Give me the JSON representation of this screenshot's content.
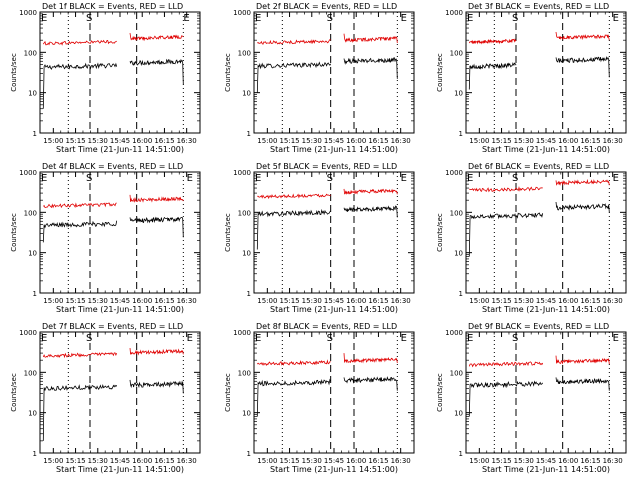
{
  "figure": {
    "x_tick_labels": [
      "15:00",
      "15:15",
      "15:30",
      "15:45",
      "16:00",
      "16:15",
      "16:30"
    ],
    "y_tick_labels": [
      "1",
      "10",
      "100",
      "1000"
    ],
    "ylabel": "Counts/sec",
    "xlabel": "Start Time (21-Jun-11 14:51:00)",
    "marker_s": "S",
    "marker_e": "E",
    "color_events": "#000000",
    "color_lld": "#e00000"
  },
  "chart_data": [
    {
      "type": "line",
      "title": "Det 1f BLACK = Events, RED = LLD",
      "xlim_min": [
        51,
        99
      ],
      "ylim": [
        1,
        1000
      ],
      "yscale": "log",
      "series": [
        {
          "name": "Events",
          "segments": [
            {
              "t": [
                52,
                74
              ],
              "start": 4,
              "level": 45,
              "end": 44
            },
            {
              "t": [
                78,
                94
              ],
              "start": 60,
              "level": 57,
              "end": 16
            }
          ]
        },
        {
          "name": "LLD",
          "segments": [
            {
              "t": [
                52,
                74
              ],
              "start": 160,
              "level": 175,
              "end": 190
            },
            {
              "t": [
                78,
                94
              ],
              "start": 300,
              "level": 230,
              "end": 240
            }
          ]
        }
      ],
      "dashed_x_min": [
        66,
        80
      ],
      "dotted_x_min": [
        59.5,
        94
      ],
      "marker_s_x_min": 66,
      "marker_e_x_min": 94
    },
    {
      "type": "line",
      "title": "Det 2f BLACK = Events, RED = LLD",
      "xlim_min": [
        51,
        99
      ],
      "ylim": [
        1,
        1000
      ],
      "yscale": "log",
      "series": [
        {
          "name": "Events",
          "segments": [
            {
              "t": [
                52,
                74
              ],
              "start": 10,
              "level": 48,
              "end": 52
            },
            {
              "t": [
                78,
                94
              ],
              "start": 70,
              "level": 62,
              "end": 22
            }
          ]
        },
        {
          "name": "LLD",
          "segments": [
            {
              "t": [
                52,
                74
              ],
              "start": 170,
              "level": 180,
              "end": 200
            },
            {
              "t": [
                78,
                94
              ],
              "start": 290,
              "level": 210,
              "end": 170
            }
          ]
        }
      ],
      "dashed_x_min": [
        74,
        81
      ],
      "dotted_x_min": [
        59.5,
        94
      ],
      "marker_s_x_min": 74,
      "marker_e_x_min": 95
    },
    {
      "type": "line",
      "title": "Det 3f BLACK = Events, RED = LLD",
      "xlim_min": [
        51,
        99
      ],
      "ylim": [
        1,
        1000
      ],
      "yscale": "log",
      "series": [
        {
          "name": "Events",
          "segments": [
            {
              "t": [
                52,
                66
              ],
              "start": 12,
              "level": 46,
              "end": 48
            },
            {
              "t": [
                78,
                94
              ],
              "start": 75,
              "level": 65,
              "end": 24
            }
          ]
        },
        {
          "name": "LLD",
          "segments": [
            {
              "t": [
                52,
                66
              ],
              "start": 170,
              "level": 185,
              "end": 200
            },
            {
              "t": [
                78,
                94
              ],
              "start": 320,
              "level": 240,
              "end": 200
            }
          ]
        }
      ],
      "dashed_x_min": [
        66,
        80
      ],
      "dotted_x_min": [
        59.5,
        94
      ],
      "marker_s_x_min": 66,
      "marker_e_x_min": 95
    },
    {
      "type": "line",
      "title": "Det 4f BLACK = Events, RED = LLD",
      "xlim_min": [
        51,
        99
      ],
      "ylim": [
        1,
        1000
      ],
      "yscale": "log",
      "series": [
        {
          "name": "Events",
          "segments": [
            {
              "t": [
                52,
                74
              ],
              "start": 18,
              "level": 50,
              "end": 62
            },
            {
              "t": [
                78,
                94
              ],
              "start": 75,
              "level": 65,
              "end": 24
            }
          ]
        },
        {
          "name": "LLD",
          "segments": [
            {
              "t": [
                52,
                74
              ],
              "start": 140,
              "level": 150,
              "end": 170
            },
            {
              "t": [
                78,
                94
              ],
              "start": 270,
              "level": 210,
              "end": 190
            }
          ]
        }
      ],
      "dashed_x_min": [
        66,
        80
      ],
      "dotted_x_min": [
        59.5,
        94
      ],
      "marker_s_x_min": 66,
      "marker_e_x_min": 95
    },
    {
      "type": "line",
      "title": "Det 5f BLACK = Events, RED = LLD",
      "xlim_min": [
        51,
        99
      ],
      "ylim": [
        1,
        1000
      ],
      "yscale": "log",
      "series": [
        {
          "name": "Events",
          "segments": [
            {
              "t": [
                52,
                74
              ],
              "start": 12,
              "level": 95,
              "end": 105
            },
            {
              "t": [
                78,
                94
              ],
              "start": 130,
              "level": 120,
              "end": 75
            }
          ]
        },
        {
          "name": "LLD",
          "segments": [
            {
              "t": [
                52,
                74
              ],
              "start": 250,
              "level": 255,
              "end": 270
            },
            {
              "t": [
                78,
                94
              ],
              "start": 380,
              "level": 330,
              "end": 280
            }
          ]
        }
      ],
      "dashed_x_min": [
        74,
        81
      ],
      "dotted_x_min": [
        59.5,
        94
      ],
      "marker_s_x_min": 74,
      "marker_e_x_min": 95
    },
    {
      "type": "line",
      "title": "Det 6f BLACK = Events, RED = LLD",
      "xlim_min": [
        51,
        99
      ],
      "ylim": [
        1,
        1000
      ],
      "yscale": "log",
      "series": [
        {
          "name": "Events",
          "segments": [
            {
              "t": [
                52,
                74
              ],
              "start": 8,
              "level": 82,
              "end": 95
            },
            {
              "t": [
                78,
                94
              ],
              "start": 180,
              "level": 135,
              "end": 100
            }
          ]
        },
        {
          "name": "LLD",
          "segments": [
            {
              "t": [
                52,
                74
              ],
              "start": 380,
              "level": 370,
              "end": 400
            },
            {
              "t": [
                78,
                94
              ],
              "start": 620,
              "level": 560,
              "end": 470
            }
          ]
        }
      ],
      "dashed_x_min": [
        66,
        80
      ],
      "dotted_x_min": [
        59.5,
        94
      ],
      "marker_s_x_min": 66,
      "marker_e_x_min": 95
    },
    {
      "type": "line",
      "title": "Det 7f BLACK = Events, RED = LLD",
      "xlim_min": [
        51,
        99
      ],
      "ylim": [
        1,
        1000
      ],
      "yscale": "log",
      "series": [
        {
          "name": "Events",
          "segments": [
            {
              "t": [
                52,
                74
              ],
              "start": 2,
              "level": 42,
              "end": 48
            },
            {
              "t": [
                78,
                94
              ],
              "start": 65,
              "level": 50,
              "end": 30
            }
          ]
        },
        {
          "name": "LLD",
          "segments": [
            {
              "t": [
                52,
                74
              ],
              "start": 240,
              "level": 270,
              "end": 300
            },
            {
              "t": [
                78,
                94
              ],
              "start": 400,
              "level": 320,
              "end": 280
            }
          ]
        }
      ],
      "dashed_x_min": [
        66,
        80
      ],
      "dotted_x_min": [
        59.5,
        94
      ],
      "marker_s_x_min": 66,
      "marker_e_x_min": 95
    },
    {
      "type": "line",
      "title": "Det 8f BLACK = Events, RED = LLD",
      "xlim_min": [
        51,
        99
      ],
      "ylim": [
        1,
        1000
      ],
      "yscale": "log",
      "series": [
        {
          "name": "Events",
          "segments": [
            {
              "t": [
                52,
                74
              ],
              "start": 8,
              "level": 55,
              "end": 60
            },
            {
              "t": [
                78,
                94
              ],
              "start": 75,
              "level": 65,
              "end": 35
            }
          ]
        },
        {
          "name": "LLD",
          "segments": [
            {
              "t": [
                52,
                74
              ],
              "start": 160,
              "level": 170,
              "end": 180
            },
            {
              "t": [
                78,
                94
              ],
              "start": 300,
              "level": 200,
              "end": 170
            }
          ]
        }
      ],
      "dashed_x_min": [
        74,
        81
      ],
      "dotted_x_min": [
        59.5,
        94
      ],
      "marker_s_x_min": 74,
      "marker_e_x_min": 95
    },
    {
      "type": "line",
      "title": "Det 9f BLACK = Events, RED = LLD",
      "xlim_min": [
        51,
        99
      ],
      "ylim": [
        1,
        1000
      ],
      "yscale": "log",
      "series": [
        {
          "name": "Events",
          "segments": [
            {
              "t": [
                52,
                74
              ],
              "start": 8,
              "level": 50,
              "end": 55
            },
            {
              "t": [
                78,
                94
              ],
              "start": 75,
              "level": 60,
              "end": 35
            }
          ]
        },
        {
          "name": "LLD",
          "segments": [
            {
              "t": [
                52,
                74
              ],
              "start": 140,
              "level": 160,
              "end": 170
            },
            {
              "t": [
                78,
                94
              ],
              "start": 260,
              "level": 190,
              "end": 160
            }
          ]
        }
      ],
      "dashed_x_min": [
        66,
        80
      ],
      "dotted_x_min": [
        59.5,
        94
      ],
      "marker_s_x_min": 66,
      "marker_e_x_min": 95
    }
  ]
}
